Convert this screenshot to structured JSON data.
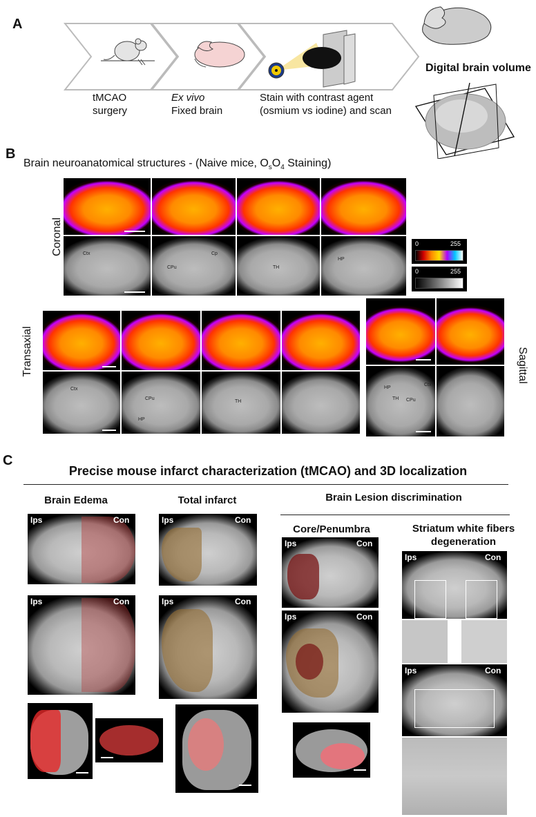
{
  "panelA": {
    "letter": "A",
    "step1": {
      "line1": "tMCAO",
      "line2": "surgery"
    },
    "step2": {
      "line1": "Ex vivo",
      "line2": "Fixed brain"
    },
    "step3": {
      "line1": "Stain with contrast agent",
      "line2": "(osmium vs iodine) and scan"
    },
    "volume_label": "Digital brain volume"
  },
  "panelB": {
    "letter": "B",
    "title_prefix": "Brain neuroanatomical structures - (Naive mice, O",
    "title_sub1": "s",
    "title_mid": "O",
    "title_sub2": "4",
    "title_suffix": " Staining)",
    "coronal": "Coronal",
    "transaxial": "Transaxial",
    "sagittal": "Sagittal",
    "colorbar": {
      "min": "0",
      "max": "255"
    },
    "labels": {
      "ctx": "Ctx",
      "cpu": "CPu",
      "cp": "Cp",
      "th": "TH",
      "hp": "HP"
    }
  },
  "panelC": {
    "letter": "C",
    "title": "Precise mouse infarct characterization (tMCAO) and 3D localization",
    "edema": "Brain Edema",
    "total": "Total infarct",
    "lesion": "Brain Lesion discrimination",
    "core": "Core/Penumbra",
    "striatum_line1": "Striatum white fibers",
    "striatum_line2": "degeneration",
    "ips": "Ips",
    "con": "Con"
  }
}
